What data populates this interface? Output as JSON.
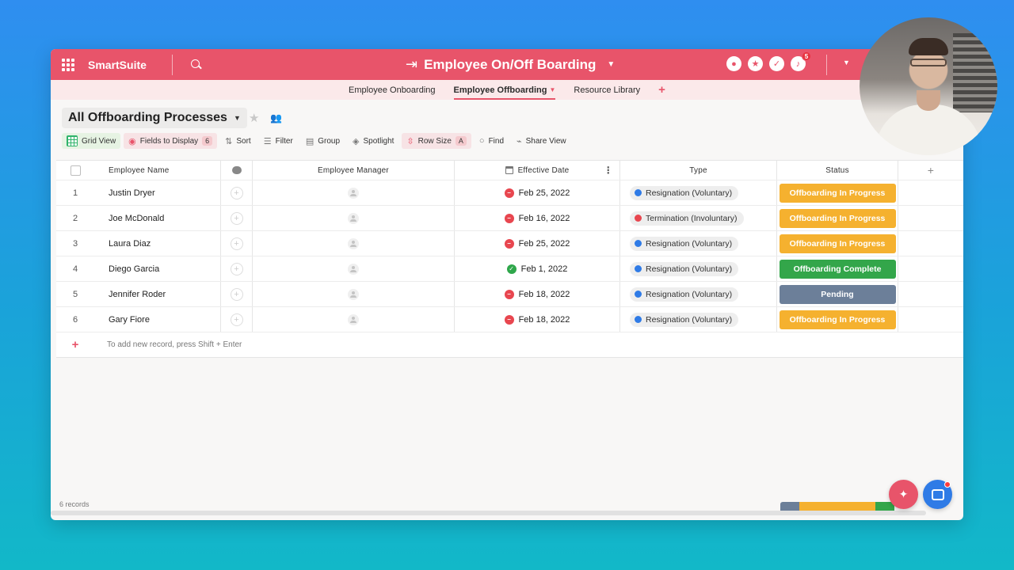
{
  "app": {
    "brand": "SmartSuite",
    "title": "Employee On/Off Boarding",
    "notification_count": "5"
  },
  "tabs": [
    {
      "label": "Employee Onboarding",
      "active": false
    },
    {
      "label": "Employee Offboarding",
      "active": true
    },
    {
      "label": "Resource Library",
      "active": false
    }
  ],
  "view": {
    "title": "All Offboarding Processes"
  },
  "toolbar": {
    "grid_view": "Grid View",
    "fields_to_display": "Fields to Display",
    "fields_count": "6",
    "sort": "Sort",
    "filter": "Filter",
    "group": "Group",
    "spotlight": "Spotlight",
    "row_size": "Row Size",
    "row_size_value": "A",
    "find": "Find",
    "share_view": "Share View"
  },
  "columns": {
    "name": "Employee Name",
    "manager": "Employee Manager",
    "date": "Effective Date",
    "type": "Type",
    "status": "Status"
  },
  "rows": [
    {
      "num": "1",
      "name": "Justin Dryer",
      "date": "Feb 25, 2022",
      "date_ok": false,
      "type": "Resignation (Voluntary)",
      "type_color": "#2f7be6",
      "status": "Offboarding In Progress",
      "status_color": "#f5b12f"
    },
    {
      "num": "2",
      "name": "Joe McDonald",
      "date": "Feb 16, 2022",
      "date_ok": false,
      "type": "Termination (Involuntary)",
      "type_color": "#e8464f",
      "status": "Offboarding In Progress",
      "status_color": "#f5b12f"
    },
    {
      "num": "3",
      "name": "Laura Diaz",
      "date": "Feb 25, 2022",
      "date_ok": false,
      "type": "Resignation (Voluntary)",
      "type_color": "#2f7be6",
      "status": "Offboarding In Progress",
      "status_color": "#f5b12f"
    },
    {
      "num": "4",
      "name": "Diego Garcia",
      "date": "Feb 1, 2022",
      "date_ok": true,
      "type": "Resignation (Voluntary)",
      "type_color": "#2f7be6",
      "status": "Offboarding Complete",
      "status_color": "#33a64a"
    },
    {
      "num": "5",
      "name": "Jennifer Roder",
      "date": "Feb 18, 2022",
      "date_ok": false,
      "type": "Resignation (Voluntary)",
      "type_color": "#2f7be6",
      "status": "Pending",
      "status_color": "#6c7f99"
    },
    {
      "num": "6",
      "name": "Gary Fiore",
      "date": "Feb 18, 2022",
      "date_ok": false,
      "type": "Resignation (Voluntary)",
      "type_color": "#2f7be6",
      "status": "Offboarding In Progress",
      "status_color": "#f5b12f"
    }
  ],
  "add_record_hint": "To add new record, press Shift + Enter",
  "footer": {
    "records": "6 records"
  },
  "status_summary": [
    {
      "color": "#6c7f99",
      "fraction": 0.1667
    },
    {
      "color": "#f5b12f",
      "fraction": 0.6667
    },
    {
      "color": "#33a64a",
      "fraction": 0.1667
    }
  ],
  "colors": {
    "accent": "#e8546a",
    "in_progress": "#f5b12f",
    "complete": "#33a64a",
    "pending": "#6c7f99"
  }
}
